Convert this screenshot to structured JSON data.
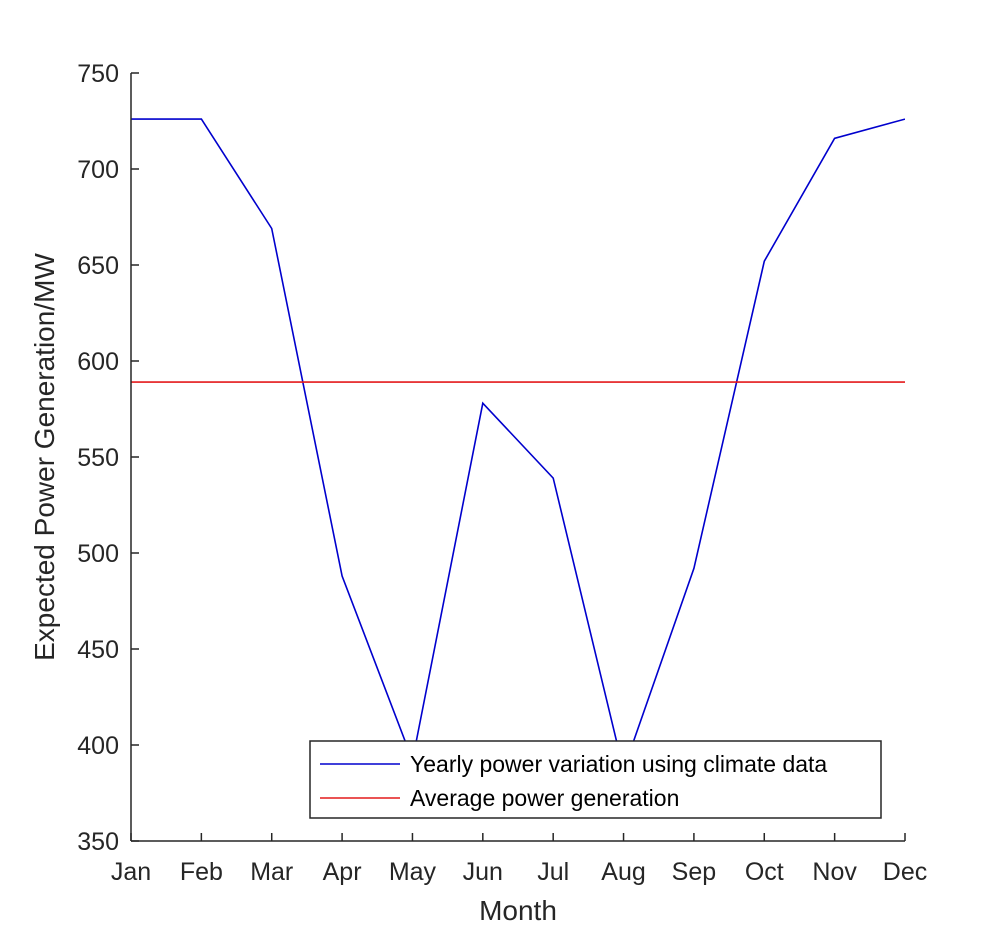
{
  "chart_data": {
    "type": "line",
    "categories": [
      "Jan",
      "Feb",
      "Mar",
      "Apr",
      "May",
      "Jun",
      "Jul",
      "Aug",
      "Sep",
      "Oct",
      "Nov",
      "Dec"
    ],
    "x": [
      1,
      2,
      3,
      4,
      5,
      6,
      7,
      8,
      9,
      10,
      11,
      12
    ],
    "xlim": [
      1,
      12
    ],
    "ylim": [
      350,
      750
    ],
    "yticks": [
      350,
      400,
      450,
      500,
      550,
      600,
      650,
      700,
      750
    ],
    "xlabel": "Month",
    "ylabel": "Expected Power Generation/MW",
    "grid": false,
    "legend_position": "bottom-right",
    "series": [
      {
        "name": "Yearly power variation using climate data",
        "color": "#0000cd",
        "values": [
          726,
          726,
          669,
          488,
          392,
          578,
          539,
          387,
          492,
          652,
          716,
          726
        ]
      },
      {
        "name": "Average power generation",
        "color": "#e41a1c",
        "values": [
          589,
          589,
          589,
          589,
          589,
          589,
          589,
          589,
          589,
          589,
          589,
          589
        ]
      }
    ]
  }
}
